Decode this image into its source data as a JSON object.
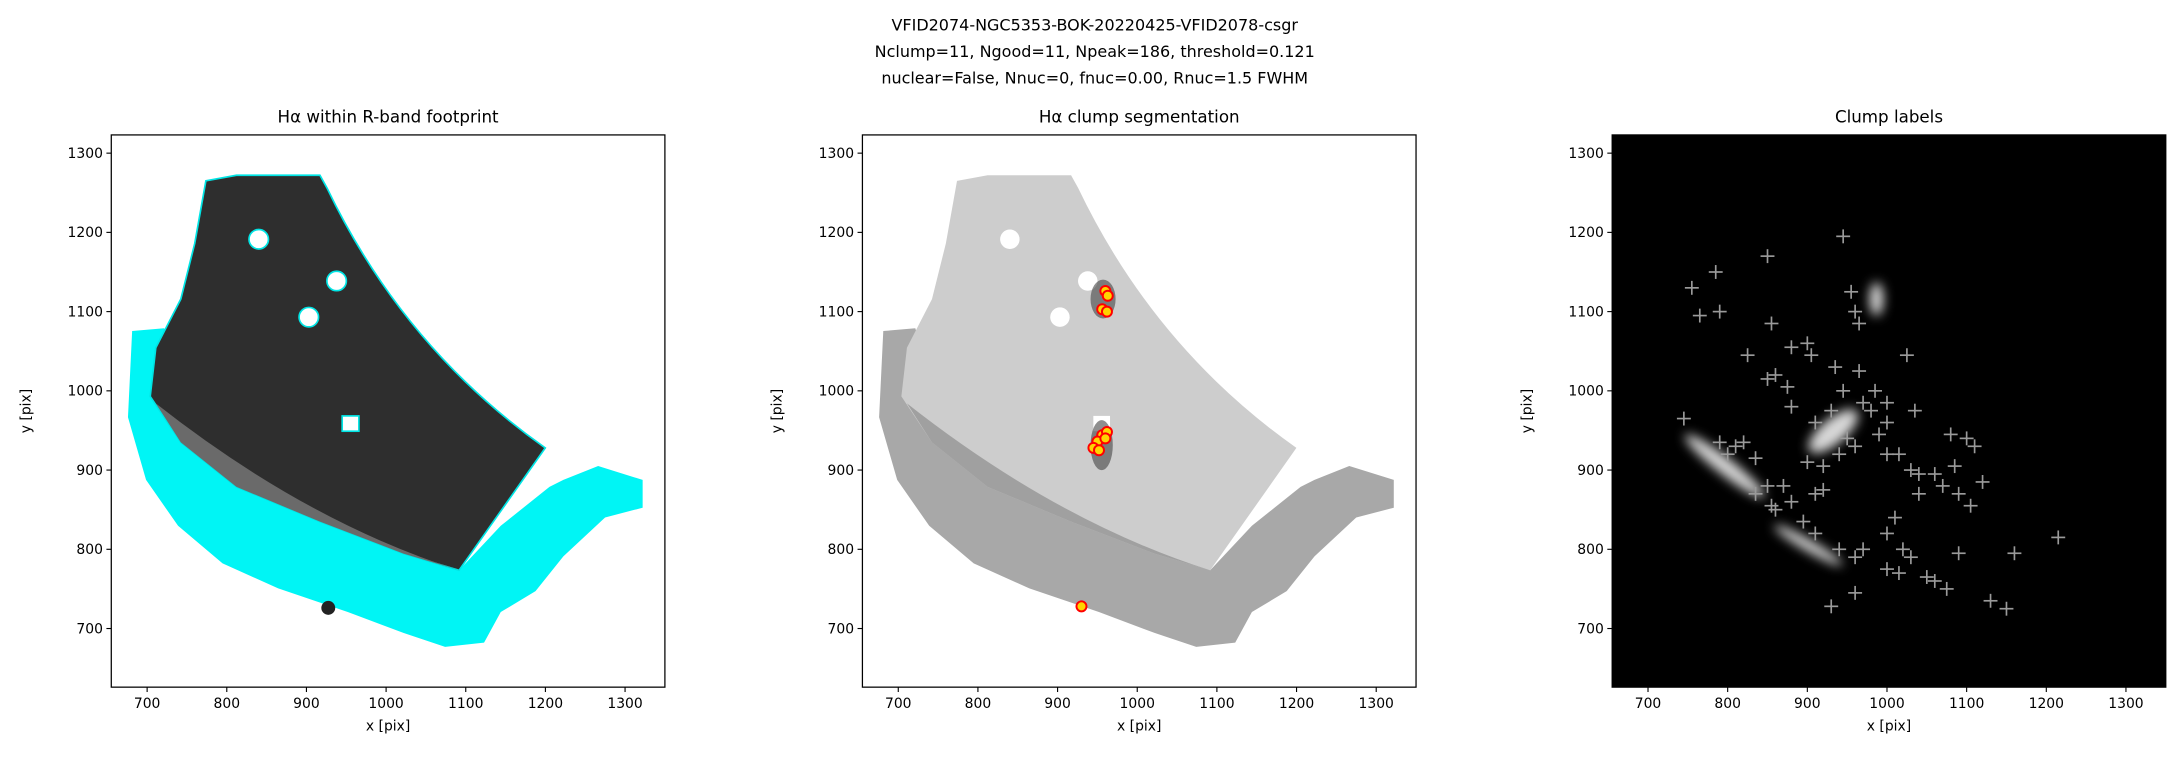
{
  "suptitle": [
    "VFID2074-NGC5353-BOK-20220425-VFID2078-csgr",
    "Nclump=11, Ngood=11, Npeak=186, threshold=0.121",
    "nuclear=False, Nnuc=0, fnuc=0.00, Rnuc=1.5 FWHM"
  ],
  "chart_data": [
    {
      "type": "image",
      "title": "Hα within R-band footprint",
      "xlabel": "x [pix]",
      "ylabel": "y [pix]",
      "xlim": [
        655,
        1350
      ],
      "ylim": [
        626,
        1323
      ],
      "xticks": [
        700,
        800,
        900,
        1000,
        1100,
        1200,
        1300
      ],
      "yticks": [
        700,
        800,
        900,
        1000,
        1100,
        1200,
        1300
      ]
    },
    {
      "type": "scatter",
      "title": "Hα clump segmentation",
      "xlabel": "x [pix]",
      "ylabel": "y [pix]",
      "xlim": [
        655,
        1350
      ],
      "ylim": [
        626,
        1323
      ],
      "xticks": [
        700,
        800,
        900,
        1000,
        1100,
        1200,
        1300
      ],
      "yticks": [
        700,
        800,
        900,
        1000,
        1100,
        1200,
        1300
      ],
      "marker": "circle",
      "color": "#ff0000",
      "fill": "#ffd400",
      "x": [
        960,
        963,
        956,
        962,
        956,
        962,
        950,
        945,
        952,
        960,
        930
      ],
      "values": [
        1126,
        1120,
        1103,
        1100,
        944,
        948,
        936,
        928,
        925,
        940,
        728
      ]
    },
    {
      "type": "scatter",
      "title": "Clump labels",
      "xlabel": "x [pix]",
      "ylabel": "y [pix]",
      "xlim": [
        655,
        1350
      ],
      "ylim": [
        626,
        1323
      ],
      "xticks": [
        700,
        800,
        900,
        1000,
        1100,
        1200,
        1300
      ],
      "yticks": [
        700,
        800,
        900,
        1000,
        1100,
        1200,
        1300
      ],
      "marker": "plus",
      "color": "#9a9a9a",
      "x": [
        755,
        785,
        765,
        790,
        850,
        945,
        825,
        855,
        850,
        875,
        880,
        900,
        905,
        880,
        860,
        935,
        945,
        910,
        930,
        965,
        985,
        1000,
        1025,
        1035,
        1000,
        990,
        1015,
        1030,
        1040,
        1060,
        1080,
        1100,
        1110,
        1085,
        1070,
        1090,
        1105,
        1120,
        1040,
        1000,
        960,
        940,
        920,
        900,
        910,
        920,
        870,
        850,
        855,
        835,
        820,
        790,
        800,
        835,
        860,
        880,
        895,
        910,
        940,
        960,
        970,
        1000,
        1010,
        1020,
        1030,
        1050,
        1060,
        1075,
        1090,
        1160,
        1215,
        1130,
        1150,
        930,
        960,
        1000,
        1015,
        745,
        810,
        960,
        965,
        955,
        970,
        980,
        950
      ],
      "values": [
        1130,
        1150,
        1095,
        1100,
        1170,
        1195,
        1045,
        1085,
        1015,
        1005,
        1055,
        1060,
        1045,
        980,
        1020,
        1030,
        1000,
        960,
        975,
        1025,
        1000,
        985,
        1045,
        975,
        960,
        945,
        920,
        900,
        895,
        895,
        945,
        940,
        930,
        905,
        880,
        870,
        855,
        885,
        870,
        920,
        930,
        920,
        905,
        910,
        870,
        875,
        880,
        880,
        855,
        915,
        935,
        935,
        920,
        870,
        850,
        860,
        835,
        820,
        800,
        790,
        800,
        820,
        840,
        800,
        790,
        765,
        760,
        750,
        795,
        795,
        815,
        735,
        725,
        728,
        745,
        775,
        770,
        965,
        930,
        1100,
        1085,
        1125,
        985,
        975,
        940
      ]
    }
  ]
}
